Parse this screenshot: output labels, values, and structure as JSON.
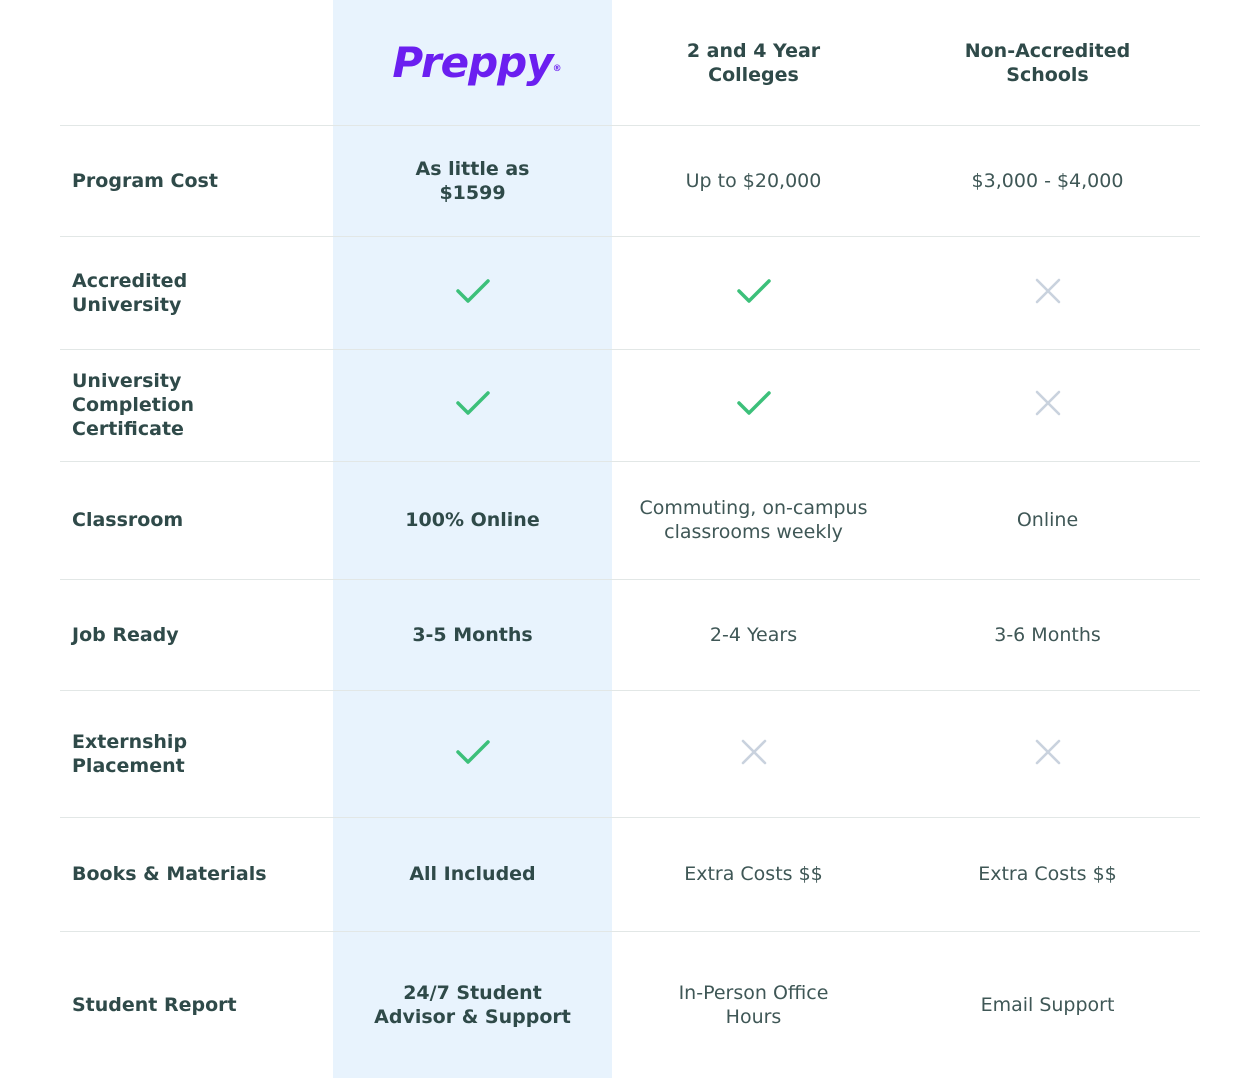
{
  "header": {
    "brand": "Preppy",
    "brand_mark": "®",
    "col2": "2 and 4 Year Colleges",
    "col3": "Non-Accredited Schools"
  },
  "rows": [
    {
      "label": "Program Cost",
      "preppy": {
        "type": "text",
        "text": "As little as $1599"
      },
      "colleges": {
        "type": "text",
        "text": "Up to $20,000"
      },
      "non_accredited": {
        "type": "text",
        "text": "$3,000 - $4,000"
      }
    },
    {
      "label": "Accredited University",
      "preppy": {
        "type": "icon",
        "icon": "check-icon"
      },
      "colleges": {
        "type": "icon",
        "icon": "check-icon"
      },
      "non_accredited": {
        "type": "icon",
        "icon": "x-icon"
      }
    },
    {
      "label": "University Completion Certificate",
      "preppy": {
        "type": "icon",
        "icon": "check-icon"
      },
      "colleges": {
        "type": "icon",
        "icon": "check-icon"
      },
      "non_accredited": {
        "type": "icon",
        "icon": "x-icon"
      }
    },
    {
      "label": "Classroom",
      "preppy": {
        "type": "text",
        "text": "100% Online"
      },
      "colleges": {
        "type": "text",
        "text": "Commuting, on-campus classrooms weekly"
      },
      "non_accredited": {
        "type": "text",
        "text": "Online"
      }
    },
    {
      "label": "Job Ready",
      "preppy": {
        "type": "text",
        "text": "3-5 Months"
      },
      "colleges": {
        "type": "text",
        "text": "2-4 Years"
      },
      "non_accredited": {
        "type": "text",
        "text": "3-6 Months"
      }
    },
    {
      "label": "Externship Placement",
      "preppy": {
        "type": "icon",
        "icon": "check-icon"
      },
      "colleges": {
        "type": "icon",
        "icon": "x-icon"
      },
      "non_accredited": {
        "type": "icon",
        "icon": "x-icon"
      }
    },
    {
      "label": "Books & Materials",
      "preppy": {
        "type": "text",
        "text": "All Included"
      },
      "colleges": {
        "type": "text",
        "text": "Extra Costs $$"
      },
      "non_accredited": {
        "type": "text",
        "text": "Extra Costs $$"
      }
    },
    {
      "label": "Student Report",
      "preppy": {
        "type": "text",
        "text": "24/7 Student Advisor & Support"
      },
      "colleges": {
        "type": "text",
        "text": "In-Person Office Hours"
      },
      "non_accredited": {
        "type": "text",
        "text": "Email Support"
      }
    }
  ],
  "colors": {
    "brand": "#6b1ff0",
    "highlight_bg": "#e8f3fd",
    "check": "#3cc07a",
    "cross": "#c9d2de",
    "text": "#2f4a49",
    "divider": "#e2e7e6"
  }
}
